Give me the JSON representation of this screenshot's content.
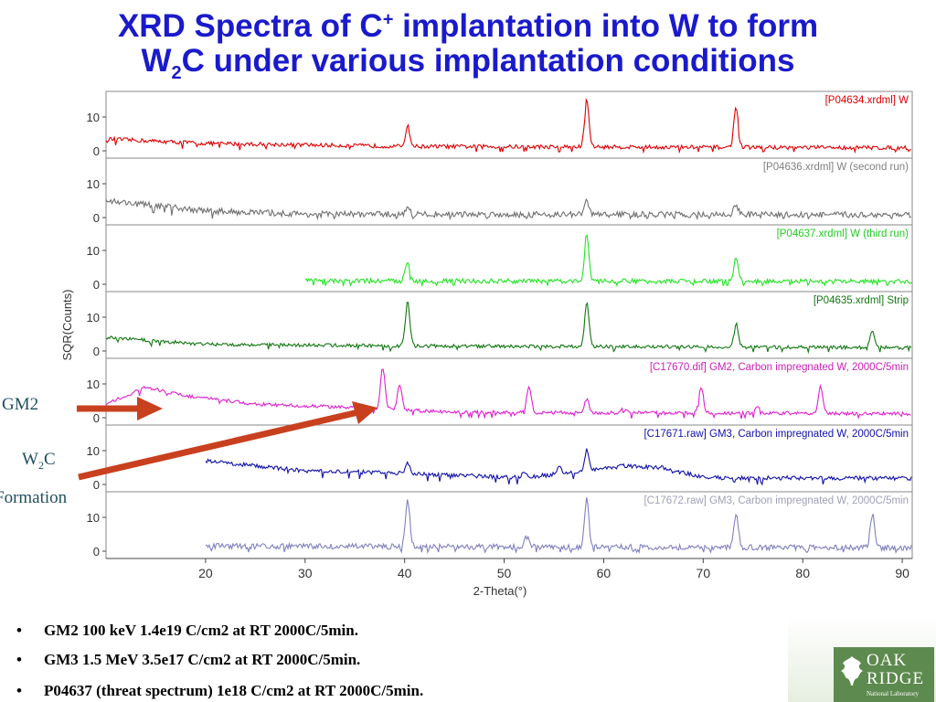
{
  "title": {
    "line1_pre": "XRD Spectra of C",
    "line1_sup": "+",
    "line1_post": " implantation into W to form",
    "line2_pre": "W",
    "line2_sub": "2",
    "line2_post": "C under various implantation conditions"
  },
  "callouts": {
    "gm2": "GM2",
    "w2c_pre": "W",
    "w2c_sub": "2",
    "w2c_post": "C",
    "formation": "Formation"
  },
  "arrow_color": "#c8401e",
  "bullets": [
    "GM2 100 keV 1.4e19 C/cm2 at RT 2000C/5min.",
    "GM3 1.5 MeV 3.5e17 C/cm2 at RT 2000C/5min.",
    "P04637 (threat spectrum) 1e18 C/cm2 at RT 2000C/5min."
  ],
  "bullet_symbol": "•",
  "logo": {
    "line1": "OAK",
    "line2": "RIDGE",
    "line3": "National Laboratory"
  },
  "chart_data": {
    "type": "line",
    "xlabel": "2-Theta(°)",
    "ylabel": "SQR(Counts)",
    "xlim": [
      10,
      91
    ],
    "x_ticks": [
      20,
      30,
      40,
      50,
      60,
      70,
      80,
      90
    ],
    "y_ticks": [
      0,
      10
    ],
    "grid": false,
    "series": [
      {
        "name": "[P04634.xrdml] W",
        "color": "#dd0000",
        "x_range": [
          10,
          91
        ],
        "baseline": 2.5,
        "background": [
          [
            10,
            3.5
          ],
          [
            20,
            2.2
          ],
          [
            40,
            1.3
          ],
          [
            90,
            0.9
          ]
        ],
        "peaks": [
          [
            40.3,
            6
          ],
          [
            58.3,
            14
          ],
          [
            73.3,
            12
          ]
        ],
        "noise": 0.6,
        "label_color": "#dd0000"
      },
      {
        "name": "[P04636.xrdml] W (second run)",
        "color": "#707070",
        "x_range": [
          10,
          91
        ],
        "baseline": 2,
        "background": [
          [
            10,
            5
          ],
          [
            20,
            2
          ],
          [
            30,
            1
          ],
          [
            90,
            0.8
          ]
        ],
        "peaks": [
          [
            40.3,
            2
          ],
          [
            58.3,
            4
          ],
          [
            73.3,
            3
          ]
        ],
        "noise": 0.9,
        "label_color": "#808080"
      },
      {
        "name": "[P04637.xrdml] W (third run)",
        "color": "#22e422",
        "x_range": [
          30,
          91
        ],
        "baseline": 1,
        "background": [
          [
            30,
            1
          ],
          [
            90,
            0.8
          ]
        ],
        "peaks": [
          [
            40.3,
            6
          ],
          [
            58.3,
            14
          ],
          [
            73.3,
            7
          ]
        ],
        "noise": 0.7,
        "label_color": "#22cc22"
      },
      {
        "name": "[P04635.xrdml] Strip",
        "color": "#117711",
        "x_range": [
          10,
          91
        ],
        "baseline": 2,
        "background": [
          [
            10,
            4
          ],
          [
            20,
            2
          ],
          [
            40,
            1.5
          ],
          [
            90,
            1
          ]
        ],
        "peaks": [
          [
            40.3,
            13
          ],
          [
            58.3,
            13
          ],
          [
            73.3,
            7
          ],
          [
            87,
            5
          ]
        ],
        "noise": 0.5,
        "label_color": "#117711"
      },
      {
        "name": "[C17670.dif] GM2, Carbon impregnated W, 2000C/5min",
        "color": "#e020d0",
        "x_range": [
          10,
          91
        ],
        "baseline": 2,
        "background": [
          [
            10,
            4
          ],
          [
            14,
            9
          ],
          [
            18,
            6.5
          ],
          [
            25,
            4
          ],
          [
            35,
            3
          ],
          [
            45,
            1.6
          ],
          [
            90,
            1.2
          ]
        ],
        "peaks": [
          [
            37.8,
            12
          ],
          [
            39.5,
            7
          ],
          [
            52.5,
            8
          ],
          [
            58.3,
            4
          ],
          [
            62,
            1.5
          ],
          [
            69.8,
            8
          ],
          [
            75.5,
            2
          ],
          [
            81.8,
            8
          ]
        ],
        "noise": 0.5,
        "label_color": "#cc20b8"
      },
      {
        "name": "[C17671.raw] GM3, Carbon impregnated W, 2000C/5min",
        "color": "#1111aa",
        "x_range": [
          20,
          91
        ],
        "baseline": 4,
        "background": [
          [
            20,
            7
          ],
          [
            30,
            4
          ],
          [
            38,
            3.5
          ],
          [
            52,
            2
          ],
          [
            58,
            4
          ],
          [
            62,
            5.5
          ],
          [
            66,
            5
          ],
          [
            70,
            2
          ],
          [
            90,
            1.8
          ]
        ],
        "peaks": [
          [
            40.3,
            3
          ],
          [
            52,
            2
          ],
          [
            55.5,
            2
          ],
          [
            58.3,
            6
          ]
        ],
        "noise": 0.6,
        "label_color": "#1111aa"
      },
      {
        "name": "[C17672.raw] GM3, Carbon impregnated W, 2000C/5min",
        "color": "#8080c0",
        "x_range": [
          20,
          91
        ],
        "baseline": 1.5,
        "background": [
          [
            20,
            1.5
          ],
          [
            90,
            1
          ]
        ],
        "peaks": [
          [
            40.3,
            14
          ],
          [
            52.3,
            3
          ],
          [
            58.3,
            14
          ],
          [
            73.3,
            10
          ],
          [
            87,
            10
          ]
        ],
        "noise": 0.8,
        "label_color": "#a0a0b8"
      }
    ]
  }
}
